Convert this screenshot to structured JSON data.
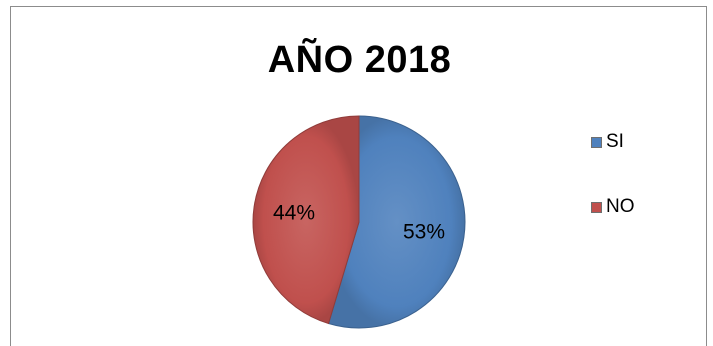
{
  "chart_data": {
    "type": "pie",
    "title": "AÑO 2018",
    "categories": [
      "SI",
      "NO"
    ],
    "values": [
      53,
      44
    ],
    "labels": [
      "53%",
      "44%"
    ],
    "colors": [
      "#4f81bd",
      "#c0504d"
    ],
    "legend_position": "right"
  }
}
